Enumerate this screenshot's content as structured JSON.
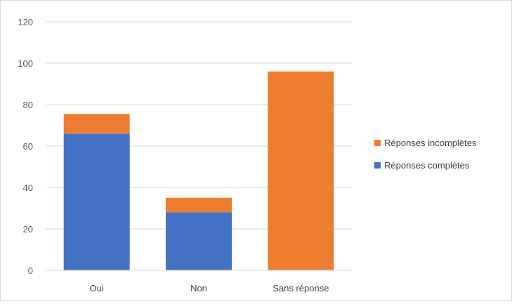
{
  "chart_data": {
    "type": "bar",
    "stacked": true,
    "categories": [
      "Oui",
      "Non",
      "Sans réponse"
    ],
    "series": [
      {
        "name": "Réponses complètes",
        "values": [
          66,
          28,
          0
        ],
        "color": "#4472C4"
      },
      {
        "name": "Réponses incomplètes",
        "values": [
          9.5,
          7,
          96
        ],
        "color": "#ED7D31"
      }
    ],
    "ylim": [
      0,
      120
    ],
    "y_ticks": [
      "0",
      "20",
      "40",
      "60",
      "80",
      "100",
      "120"
    ],
    "grid": true,
    "legend_position": "right",
    "legend_order": [
      1,
      0
    ]
  }
}
